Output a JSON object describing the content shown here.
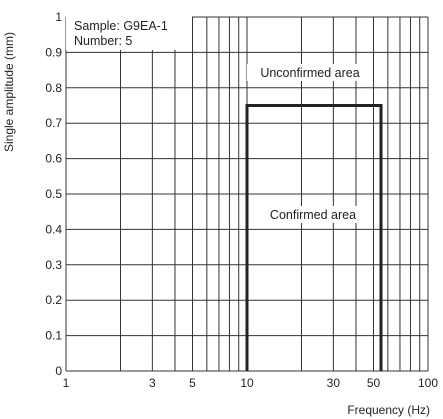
{
  "chart_data": {
    "type": "line",
    "title": "",
    "xlabel": "Frequency (Hz)",
    "ylabel": "Single amplitude (mm)",
    "x_scale": "log",
    "xlim": [
      1,
      100
    ],
    "ylim": [
      0,
      1
    ],
    "grid": true,
    "x_tick_labels": [
      "1",
      "3",
      "5",
      "10",
      "30",
      "50",
      "100"
    ],
    "y_tick_labels": [
      "0",
      "0.1",
      "0.2",
      "0.3",
      "0.4",
      "0.5",
      "0.6",
      "0.7",
      "0.8",
      "0.9",
      "1"
    ],
    "series": [
      {
        "x": [
          10,
          10,
          55,
          55
        ],
        "y": [
          0,
          0.75,
          0.75,
          0
        ]
      }
    ],
    "annotations": {
      "sample": "Sample: G9EA-1",
      "number": "Number: 5",
      "unconfirmed": "Unconfirmed area",
      "confirmed": "Confirmed area"
    },
    "colors": {
      "grid": "#333333",
      "boundary": "#222222",
      "text": "#222222"
    }
  }
}
